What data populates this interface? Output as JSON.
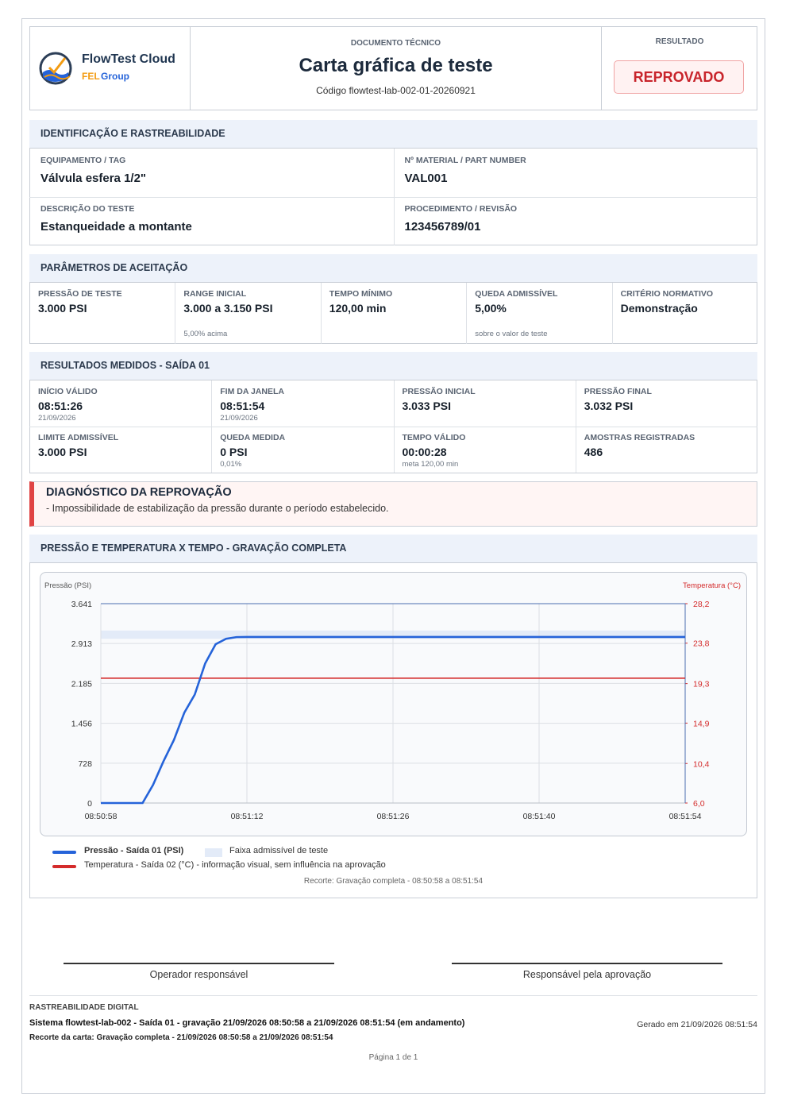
{
  "header": {
    "brand": "FlowTest Cloud",
    "group": [
      "FEL",
      "Group"
    ],
    "doc_type": "DOCUMENTO TÉCNICO",
    "title": "Carta gráfica de teste",
    "code": "Código flowtest-lab-002-01-20260921",
    "result_label": "RESULTADO",
    "result": "REPROVADO"
  },
  "identification": {
    "title": "IDENTIFICAÇÃO E RASTREABILIDADE",
    "fields": [
      {
        "label": "EQUIPAMENTO / TAG",
        "value": "Válvula esfera 1/2\""
      },
      {
        "label": "Nº MATERIAL / PART NUMBER",
        "value": "VAL001"
      },
      {
        "label": "DESCRIÇÃO DO TESTE",
        "value": "Estanqueidade a montante"
      },
      {
        "label": "PROCEDIMENTO / REVISÃO",
        "value": "123456789/01"
      }
    ]
  },
  "acceptance": {
    "title": "PARÂMETROS DE ACEITAÇÃO",
    "fields": [
      {
        "label": "PRESSÃO DE TESTE",
        "value": "3.000 PSI"
      },
      {
        "label": "RANGE INICIAL",
        "value": "3.000 a 3.150 PSI",
        "note": "5,00% acima"
      },
      {
        "label": "TEMPO MÍNIMO",
        "value": "120,00 min"
      },
      {
        "label": "QUEDA ADMISSÍVEL",
        "value": "5,00%",
        "note": "sobre o valor de teste"
      },
      {
        "label": "CRITÉRIO NORMATIVO",
        "value": "Demonstração"
      }
    ]
  },
  "measured": {
    "title": "RESULTADOS MEDIDOS - SAÍDA 01",
    "fields": [
      {
        "label": "INÍCIO VÁLIDO",
        "value": "08:51:26",
        "note": "21/09/2026"
      },
      {
        "label": "FIM DA JANELA",
        "value": "08:51:54",
        "note": "21/09/2026"
      },
      {
        "label": "PRESSÃO INICIAL",
        "value": "3.033 PSI"
      },
      {
        "label": "PRESSÃO FINAL",
        "value": "3.032 PSI"
      },
      {
        "label": "LIMITE ADMISSÍVEL",
        "value": "3.000 PSI"
      },
      {
        "label": "QUEDA MEDIDA",
        "value": "0 PSI",
        "note": "0,01%"
      },
      {
        "label": "TEMPO VÁLIDO",
        "value": "00:00:28",
        "note": "meta 120,00 min"
      },
      {
        "label": "AMOSTRAS REGISTRADAS",
        "value": "486"
      }
    ]
  },
  "diagnosis": {
    "title": "DIAGNÓSTICO DA REPROVAÇÃO",
    "text": "- Impossibilidade de estabilização da pressão durante o período estabelecido."
  },
  "chart_section": {
    "title": "PRESSÃO E TEMPERATURA X TEMPO - GRAVAÇÃO COMPLETA"
  },
  "chart_data": {
    "type": "line",
    "ylabel": "Pressão (PSI)",
    "y2label": "Temperatura (°C)",
    "xlim": [
      "08:50:58",
      "08:51:54"
    ],
    "xticks": [
      "08:50:58",
      "08:51:12",
      "08:51:26",
      "08:51:40",
      "08:51:54"
    ],
    "ylim": [
      0,
      3641
    ],
    "yticks": [
      0,
      728,
      {
        "value": 1456,
        "label": "1.456"
      },
      {
        "value": 2185,
        "label": "2.185"
      },
      {
        "value": 2913,
        "label": "2.913"
      },
      {
        "value": 3641,
        "label": "3.641"
      }
    ],
    "y2lim": [
      6.0,
      28.2
    ],
    "y2ticks": [
      {
        "value": 6.0,
        "label": "6,0"
      },
      {
        "value": 10.4,
        "label": "10,4"
      },
      {
        "value": 14.9,
        "label": "14,9"
      },
      {
        "value": 19.3,
        "label": "19,3"
      },
      {
        "value": 23.8,
        "label": "23,8"
      },
      {
        "value": 28.2,
        "label": "28,2"
      }
    ],
    "grid": true,
    "band": {
      "name": "Faixa admissível de teste",
      "color": "#e3ebf8",
      "range": [
        3000,
        3150
      ]
    },
    "series": [
      {
        "name": "Pressão - Saída 01 (PSI)",
        "color": "#2563d9",
        "x": [
          "08:50:58",
          "08:51:02",
          "08:51:03",
          "08:51:04",
          "08:51:05",
          "08:51:06",
          "08:51:07",
          "08:51:08",
          "08:51:09",
          "08:51:10",
          "08:51:11",
          "08:51:12",
          "08:51:54"
        ],
        "values": [
          0,
          0,
          330,
          760,
          1150,
          1650,
          1980,
          2550,
          2900,
          3000,
          3030,
          3033,
          3032
        ]
      },
      {
        "name": "Temperatura - Saída 02 (°C) - informação visual, sem influência na aprovação",
        "color": "#d42b2b",
        "axis": "y2",
        "x": [
          "08:50:58",
          "08:51:54"
        ],
        "values": [
          19.9,
          19.9
        ]
      }
    ],
    "caption": "Recorte: Gravação completa - 08:50:58 a 08:51:54"
  },
  "signatures": [
    "Operador responsável",
    "Responsável pela aprovação"
  ],
  "footer": {
    "title": "RASTREABILIDADE DIGITAL",
    "system": "Sistema flowtest-lab-002 - Saída 01 - gravação 21/09/2026 08:50:58 a 21/09/2026 08:51:54 (em andamento)",
    "generated": "Gerado em 21/09/2026 08:51:54",
    "cut": "Recorte da carta: Gravação completa - 21/09/2026 08:50:58 a 21/09/2026 08:51:54",
    "page": "Página 1 de 1"
  }
}
